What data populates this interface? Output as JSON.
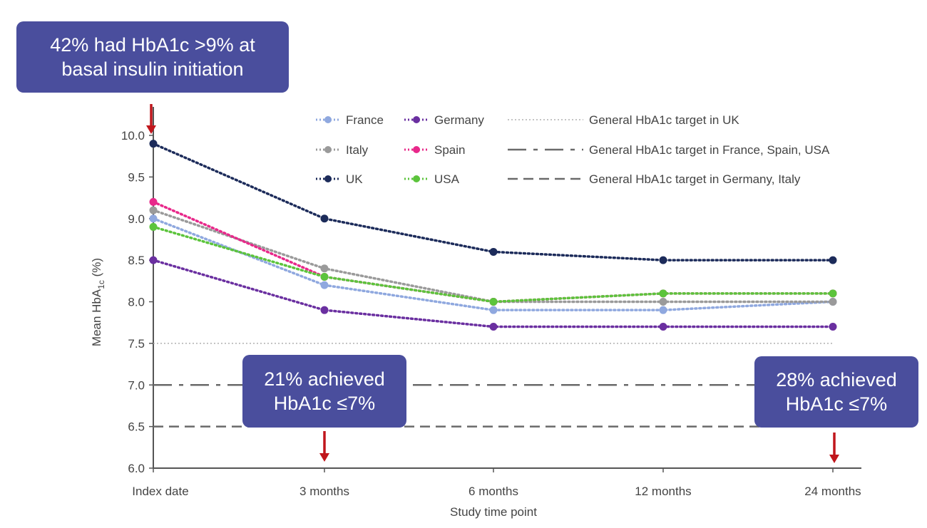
{
  "chart_data": {
    "type": "line",
    "xlabel": "Study time point",
    "ylabel_main": "Mean HbA",
    "ylabel_sub": "1c",
    "ylabel_suffix": " (%)",
    "categories": [
      "Index date",
      "3 months",
      "6 months",
      "12 months",
      "24 months"
    ],
    "ylim": [
      6.0,
      10.0
    ],
    "yticks": [
      "6.0",
      "6.5",
      "7.0",
      "7.5",
      "8.0",
      "8.5",
      "9.0",
      "9.5",
      "10.0"
    ],
    "series": [
      {
        "name": "France",
        "color": "#8fa8df",
        "values": [
          9.0,
          8.2,
          7.9,
          7.9,
          8.0
        ]
      },
      {
        "name": "Germany",
        "color": "#6a2fa0",
        "values": [
          8.5,
          7.9,
          7.7,
          7.7,
          7.7
        ]
      },
      {
        "name": "Italy",
        "color": "#9a9a9a",
        "values": [
          9.1,
          8.4,
          8.0,
          8.0,
          8.0
        ]
      },
      {
        "name": "Spain",
        "color": "#e8288a",
        "values": [
          9.2,
          8.3,
          8.0,
          8.1,
          8.1
        ]
      },
      {
        "name": "UK",
        "color": "#1c2b5a",
        "values": [
          9.9,
          9.0,
          8.6,
          8.5,
          8.5
        ]
      },
      {
        "name": "USA",
        "color": "#5cc43c",
        "values": [
          8.9,
          8.3,
          8.0,
          8.1,
          8.1
        ]
      }
    ],
    "reference_lines": [
      {
        "label": "General HbA1c target in UK",
        "value": 7.5,
        "style": "dotted",
        "color": "#b0b0b0"
      },
      {
        "label": "General HbA1c target in France, Spain, USA",
        "value": 7.0,
        "style": "dash-dot",
        "color": "#6a6a6a"
      },
      {
        "label": "General HbA1c target in Germany, Italy",
        "value": 6.5,
        "style": "dashed",
        "color": "#6a6a6a"
      }
    ],
    "legend_placement": "top-center",
    "grid": false
  },
  "callouts": {
    "top": {
      "line1": "42% had HbA1c >9% at",
      "line2": "basal insulin initiation"
    },
    "mid": {
      "line1": "21% achieved",
      "line2": "HbA1c ≤7%"
    },
    "right": {
      "line1": "28% achieved",
      "line2": "HbA1c ≤7%"
    }
  },
  "colors": {
    "callout_bg": "#4a4e9d",
    "arrow": "#c0161c",
    "axis": "#555555"
  }
}
